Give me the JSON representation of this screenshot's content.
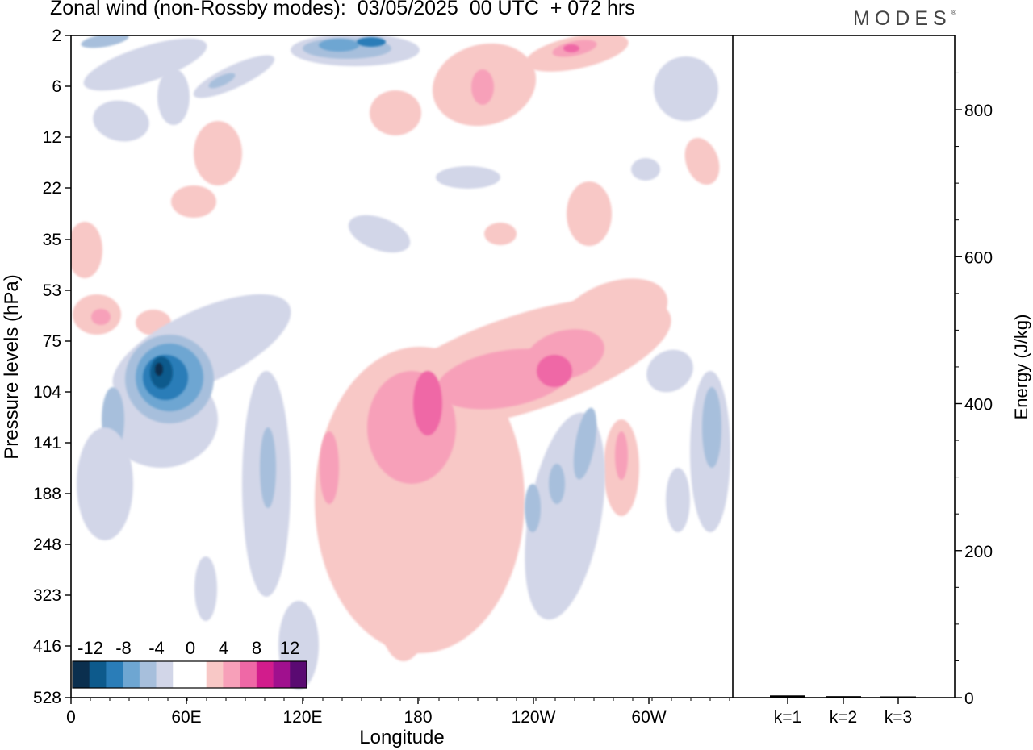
{
  "title": "Zonal wind (non-Rossby modes):  03/05/2025  00 UTC  + 072 hrs",
  "logo": "MODES",
  "chart_data": [
    {
      "type": "heatmap",
      "variable": "Zonal wind (non-Rossby modes)",
      "xlabel": "Longitude",
      "ylabel": "Pressure levels (hPa)",
      "x_ticks": [
        "0",
        "60E",
        "120E",
        "180",
        "120W",
        "60W"
      ],
      "y_ticks": [
        "2",
        "6",
        "12",
        "22",
        "35",
        "53",
        "75",
        "104",
        "141",
        "188",
        "248",
        "323",
        "416",
        "528"
      ],
      "colorbar": {
        "labels": [
          "-12",
          "-8",
          "-4",
          "0",
          "4",
          "8",
          "12"
        ],
        "colors": [
          "#0b2f4e",
          "#0d5a8c",
          "#2a7db8",
          "#6ea6d2",
          "#a7bfdc",
          "#d2d6e8",
          "#ffffff",
          "#ffffff",
          "#f8c8c6",
          "#f7a0b9",
          "#ef68a6",
          "#d21c8c",
          "#a0108e",
          "#5a0a72"
        ]
      },
      "features": [
        {
          "lon": 45,
          "level": 104,
          "value": -14
        },
        {
          "lon": 190,
          "level": 130,
          "value": 9
        },
        {
          "lon": 240,
          "level": 100,
          "value": 9
        },
        {
          "lon": 150,
          "level": 2,
          "value": -6
        },
        {
          "lon": 255,
          "level": 4,
          "value": 8
        }
      ]
    },
    {
      "type": "bar",
      "categories": [
        "k=1",
        "k=2",
        "k=3"
      ],
      "values": [
        3,
        2,
        1
      ],
      "ylabel": "Energy (J/kg)",
      "y_ticks": [
        "0",
        "200",
        "400",
        "600",
        "800"
      ],
      "ylim": [
        0,
        900
      ]
    }
  ]
}
